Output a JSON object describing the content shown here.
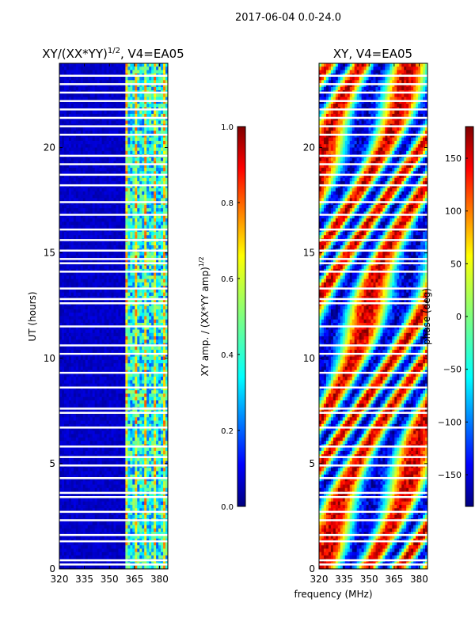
{
  "suptitle": "2017-06-04 0.0-24.0",
  "shared": {
    "xlabel": "frequency (MHz)",
    "ylabel": "UT (hours)"
  },
  "chart_data": [
    {
      "type": "heatmap",
      "title": "XY/(XX*YY)^{1/2}, V4=EA05",
      "title_main": "XY/(XX*YY)",
      "title_exp": "1/2",
      "title_tail": ", V4=EA05",
      "x_ticks": [
        "320",
        "335",
        "350",
        "365",
        "380"
      ],
      "x_tick_values": [
        320,
        335,
        350,
        365,
        380
      ],
      "xlim": [
        320,
        385
      ],
      "y_ticks": [
        "0",
        "5",
        "10",
        "15",
        "20"
      ],
      "y_tick_values": [
        0,
        5,
        10,
        15,
        20
      ],
      "ylim": [
        0,
        24
      ],
      "colorbar": {
        "label": "XY amp. / (XX*YY amp)^{1/2}",
        "label_main": "XY amp. / (XX*YY amp)",
        "label_exp": "1/2",
        "ticks": [
          "0.0",
          "0.2",
          "0.4",
          "0.6",
          "0.8",
          "1.0"
        ],
        "tick_values": [
          0.0,
          0.2,
          0.4,
          0.6,
          0.8,
          1.0
        ],
        "range": [
          0,
          1
        ],
        "colormap": "jet"
      },
      "bright_band_mhz": [
        360,
        385
      ],
      "flagged_hours": [
        0.2,
        0.4,
        1.3,
        1.6,
        2.3,
        2.7,
        3.4,
        3.6,
        4.3,
        4.9,
        5.3,
        5.8,
        6.7,
        7.4,
        7.6,
        8.6,
        9.3,
        10.2,
        10.6,
        11.5,
        12.6,
        12.8,
        13.3,
        14.1,
        14.5,
        14.7,
        15.1,
        15.6,
        16.1,
        16.8,
        17.4,
        18.2,
        18.7,
        19.2,
        19.6,
        20.6,
        21.0,
        21.4,
        21.8,
        22.2,
        22.6,
        23.0,
        23.4
      ]
    },
    {
      "type": "heatmap",
      "title": "XY, V4=EA05",
      "x_ticks": [
        "320",
        "335",
        "350",
        "365",
        "380"
      ],
      "x_tick_values": [
        320,
        335,
        350,
        365,
        380
      ],
      "xlim": [
        320,
        385
      ],
      "y_ticks": [
        "0",
        "5",
        "10",
        "15",
        "20"
      ],
      "y_tick_values": [
        0,
        5,
        10,
        15,
        20
      ],
      "ylim": [
        0,
        24
      ],
      "colorbar": {
        "label": "phase (deg)",
        "ticks": [
          "−150",
          "−100",
          "−50",
          "0",
          "50",
          "100",
          "150"
        ],
        "tick_values": [
          -150,
          -100,
          -50,
          0,
          50,
          100,
          150
        ],
        "range": [
          -180,
          180
        ],
        "colormap": "jet"
      },
      "flagged_hours": [
        0.2,
        0.4,
        1.3,
        1.6,
        2.3,
        2.7,
        3.4,
        3.6,
        4.3,
        4.9,
        5.3,
        5.8,
        6.7,
        7.4,
        7.6,
        8.6,
        9.3,
        10.2,
        10.6,
        11.5,
        12.6,
        12.8,
        13.3,
        14.1,
        14.5,
        14.7,
        15.1,
        15.6,
        16.1,
        16.8,
        17.4,
        18.2,
        18.7,
        19.2,
        19.6,
        20.6,
        21.0,
        21.4,
        21.8,
        22.2,
        22.6,
        23.0,
        23.4
      ]
    }
  ],
  "colors": {
    "jet": [
      "#00007f",
      "#0000ff",
      "#007fff",
      "#00ffff",
      "#7fff7f",
      "#ffff00",
      "#ff7f00",
      "#ff0000",
      "#7f0000"
    ]
  }
}
